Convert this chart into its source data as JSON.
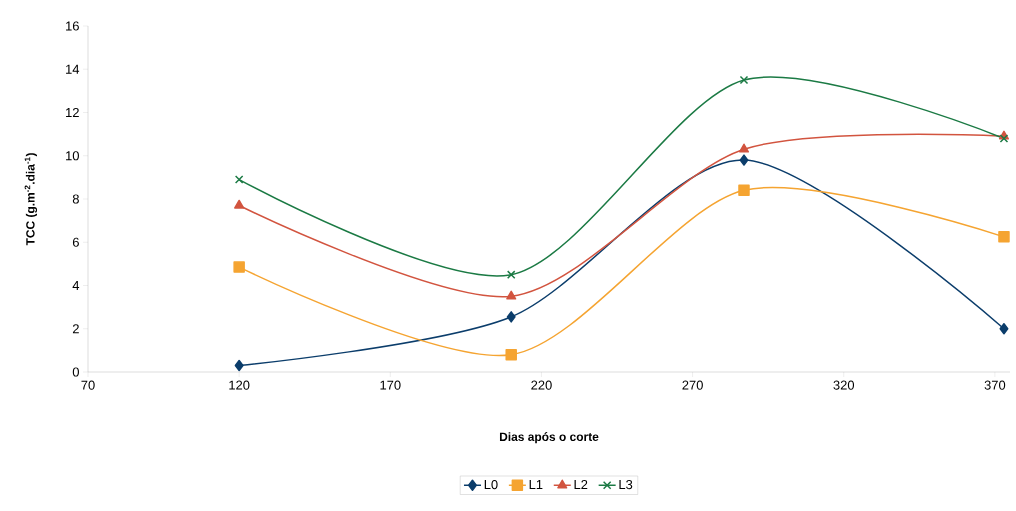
{
  "chart_data": {
    "type": "line",
    "xlabel": "Dias após o corte",
    "ylabel": "TCC (g.m$^{-2}$.dia$^{-1}$)",
    "x": [
      120,
      210,
      287,
      373
    ],
    "xlim": [
      70,
      375
    ],
    "xticks": [
      70,
      120,
      170,
      220,
      270,
      320,
      370
    ],
    "ylim": [
      0,
      16
    ],
    "yticks": [
      0,
      2,
      4,
      6,
      8,
      10,
      12,
      14,
      16
    ],
    "grid": false,
    "legend": "bottom",
    "line_style": "solid",
    "series": [
      {
        "name": "L0",
        "color": "#0b3d6b",
        "marker": "diamond",
        "values": [
          0.3,
          2.55,
          9.8,
          2.0
        ]
      },
      {
        "name": "L1",
        "color": "#f5a431",
        "marker": "square",
        "values": [
          4.85,
          0.8,
          8.4,
          6.25
        ]
      },
      {
        "name": "L2",
        "color": "#d2543f",
        "marker": "triangle",
        "values": [
          7.7,
          3.5,
          10.3,
          10.9
        ]
      },
      {
        "name": "L3",
        "color": "#1b7a44",
        "marker": "cross",
        "values": [
          8.9,
          4.5,
          13.5,
          10.8
        ]
      }
    ]
  }
}
